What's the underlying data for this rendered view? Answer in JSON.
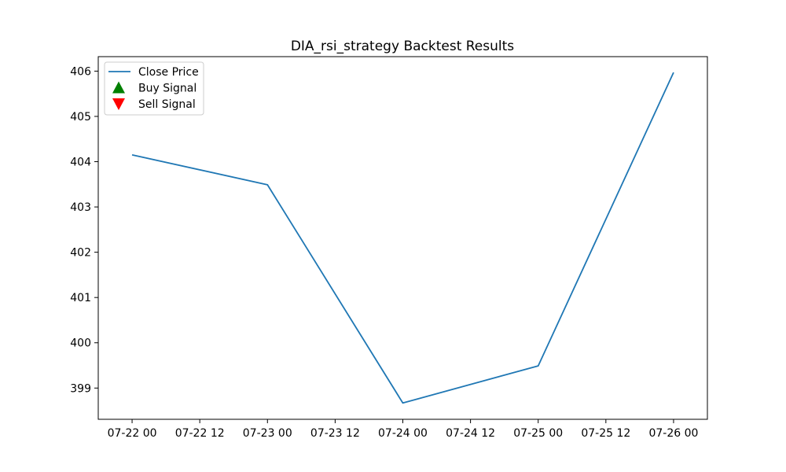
{
  "chart_data": {
    "type": "line",
    "title": "DIA_rsi_strategy Backtest Results",
    "xlabel": "",
    "ylabel": "",
    "x": [
      "07-22 00",
      "07-23 00",
      "07-24 00",
      "07-25 00",
      "07-26 00"
    ],
    "x_hours": [
      0,
      24,
      48,
      72,
      96
    ],
    "x_ticks": [
      "07-22 00",
      "07-22 12",
      "07-23 00",
      "07-23 12",
      "07-24 00",
      "07-24 12",
      "07-25 00",
      "07-25 12",
      "07-26 00"
    ],
    "x_tick_hours": [
      0,
      12,
      24,
      36,
      48,
      60,
      72,
      84,
      96
    ],
    "xlim_hours": [
      -6.0,
      102.0
    ],
    "y_ticks": [
      399,
      400,
      401,
      402,
      403,
      404,
      405,
      406
    ],
    "ylim": [
      398.31,
      406.32
    ],
    "grid": false,
    "legend_position": "top-left",
    "series": [
      {
        "name": "Close Price",
        "color": "#1f77b4",
        "values": [
          404.15,
          403.49,
          398.67,
          399.49,
          405.97
        ]
      }
    ],
    "legend": [
      {
        "label": "Close Price",
        "kind": "line",
        "color": "#1f77b4"
      },
      {
        "label": "Buy Signal",
        "kind": "triangle-up",
        "color": "#008000"
      },
      {
        "label": "Sell Signal",
        "kind": "triangle-down",
        "color": "#ff0000"
      }
    ]
  }
}
